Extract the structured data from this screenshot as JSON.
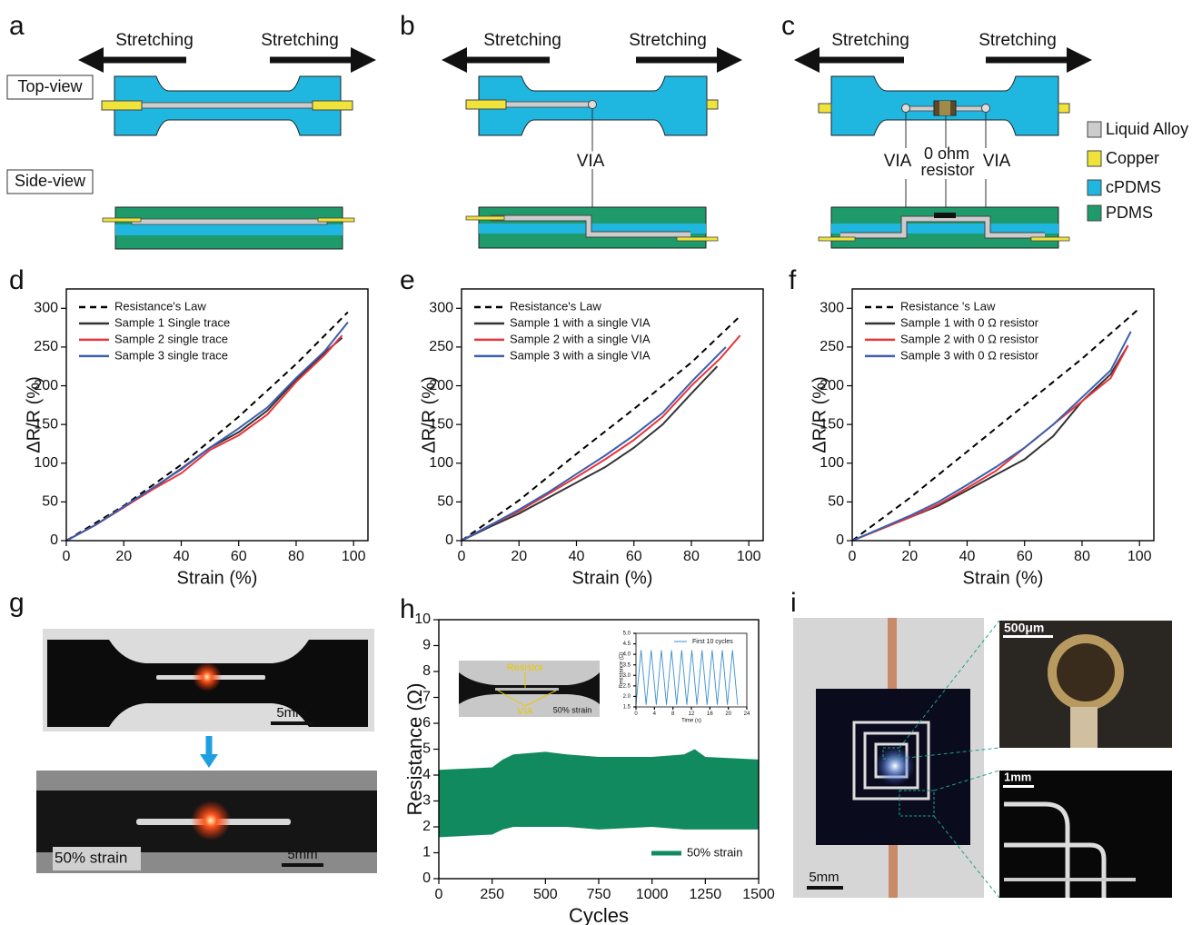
{
  "panels": {
    "a": {
      "label": "a",
      "stretch_left": "Stretching",
      "stretch_right": "Stretching",
      "top_view": "Top-view",
      "side_view": "Side-view"
    },
    "b": {
      "label": "b",
      "stretch_left": "Stretching",
      "stretch_right": "Stretching",
      "via": "VIA"
    },
    "c": {
      "label": "c",
      "stretch_left": "Stretching",
      "stretch_right": "Stretching",
      "via_left": "VIA",
      "resistor_lines": [
        "0 ohm",
        "resistor"
      ],
      "via_right": "VIA"
    },
    "legend": [
      "Liquid Alloy",
      "Copper",
      "cPDMS",
      "PDMS"
    ],
    "g": {
      "label": "g",
      "scale_top": "5mm",
      "scale_bottom": "5mm",
      "strain": "50% strain"
    },
    "h_photo": {
      "resistor": "Resistor",
      "via": "VIA",
      "strain": "50% strain"
    },
    "i": {
      "label": "i",
      "scale_main": "5mm",
      "scale_top": "500μm",
      "scale_bottom": "1mm"
    }
  },
  "chart_data": [
    {
      "type": "line",
      "label": "d",
      "xlabel": "Strain (%)",
      "ylabel": "ΔR/R (%)",
      "xlim": [
        0,
        105
      ],
      "ylim": [
        0,
        325
      ],
      "xticks": [
        0,
        20,
        40,
        60,
        80,
        100
      ],
      "yticks": [
        0,
        50,
        100,
        150,
        200,
        250,
        300
      ],
      "legend": "upper left",
      "series": [
        {
          "name": "Resistance's Law",
          "color": "#000000",
          "style": "dashed",
          "x": [
            0,
            20,
            40,
            60,
            80,
            98
          ],
          "values": [
            0,
            45,
            98,
            160,
            228,
            295
          ]
        },
        {
          "name": "Sample 1 Single trace",
          "color": "#333333",
          "style": "solid",
          "x": [
            0,
            10,
            20,
            30,
            40,
            50,
            60,
            70,
            80,
            90,
            96
          ],
          "values": [
            0,
            20,
            43,
            67,
            93,
            120,
            140,
            168,
            208,
            243,
            262
          ]
        },
        {
          "name": "Sample 2 single trace",
          "color": "#e8343a",
          "style": "solid",
          "x": [
            0,
            10,
            20,
            30,
            40,
            50,
            60,
            70,
            80,
            90,
            96
          ],
          "values": [
            0,
            20,
            43,
            66,
            87,
            117,
            136,
            163,
            205,
            240,
            265
          ]
        },
        {
          "name": "Sample 3 single trace",
          "color": "#3a5fae",
          "style": "solid",
          "x": [
            0,
            10,
            20,
            30,
            40,
            50,
            60,
            70,
            80,
            90,
            98
          ],
          "values": [
            0,
            20,
            44,
            68,
            92,
            120,
            145,
            172,
            210,
            245,
            282
          ]
        }
      ]
    },
    {
      "type": "line",
      "label": "e",
      "xlabel": "Strain (%)",
      "ylabel": "ΔR/R (%)",
      "xlim": [
        0,
        105
      ],
      "ylim": [
        0,
        325
      ],
      "xticks": [
        0,
        20,
        40,
        60,
        80,
        100
      ],
      "yticks": [
        0,
        50,
        100,
        150,
        200,
        250,
        300
      ],
      "legend": "upper left",
      "series": [
        {
          "name": "Resistance's Law",
          "color": "#000000",
          "style": "dashed",
          "x": [
            0,
            20,
            40,
            60,
            80,
            97
          ],
          "values": [
            0,
            52,
            112,
            170,
            230,
            290
          ]
        },
        {
          "name": "Sample 1 with a single VIA",
          "color": "#333333",
          "style": "solid",
          "x": [
            0,
            10,
            20,
            30,
            40,
            50,
            60,
            70,
            80,
            89
          ],
          "values": [
            0,
            18,
            35,
            55,
            75,
            95,
            120,
            150,
            190,
            225
          ]
        },
        {
          "name": "Sample 2 with a single VIA",
          "color": "#e8343a",
          "style": "solid",
          "x": [
            0,
            10,
            20,
            30,
            40,
            50,
            60,
            70,
            80,
            90,
            97
          ],
          "values": [
            0,
            20,
            38,
            60,
            82,
            105,
            130,
            160,
            200,
            235,
            265
          ]
        },
        {
          "name": "Sample 3 with a single VIA",
          "color": "#3a5fae",
          "style": "solid",
          "x": [
            0,
            10,
            20,
            30,
            40,
            50,
            60,
            70,
            80,
            92
          ],
          "values": [
            0,
            20,
            40,
            62,
            86,
            110,
            136,
            165,
            205,
            250
          ]
        }
      ]
    },
    {
      "type": "line",
      "label": "f",
      "xlabel": "Strain (%)",
      "ylabel": "ΔR/R (%)",
      "xlim": [
        0,
        105
      ],
      "ylim": [
        0,
        325
      ],
      "xticks": [
        0,
        20,
        40,
        60,
        80,
        100
      ],
      "yticks": [
        0,
        50,
        100,
        150,
        200,
        250,
        300
      ],
      "legend": "upper left",
      "series": [
        {
          "name": "Resistance 's Law",
          "color": "#000000",
          "style": "dashed",
          "x": [
            0,
            20,
            40,
            60,
            80,
            100
          ],
          "values": [
            0,
            55,
            115,
            175,
            235,
            300
          ]
        },
        {
          "name": "Sample 1 with 0 Ω resistor",
          "color": "#333333",
          "style": "solid",
          "x": [
            0,
            10,
            20,
            30,
            40,
            50,
            60,
            70,
            80,
            90,
            96
          ],
          "values": [
            0,
            15,
            30,
            45,
            65,
            85,
            105,
            135,
            180,
            215,
            252
          ]
        },
        {
          "name": "Sample 2 with 0 Ω resistor",
          "color": "#e8343a",
          "style": "solid",
          "x": [
            0,
            10,
            20,
            30,
            40,
            50,
            60,
            70,
            80,
            90,
            96
          ],
          "values": [
            0,
            15,
            30,
            47,
            68,
            90,
            120,
            150,
            180,
            210,
            252
          ]
        },
        {
          "name": "Sample 3 with 0 Ω resistor",
          "color": "#3a5fae",
          "style": "solid",
          "x": [
            0,
            10,
            20,
            30,
            40,
            50,
            60,
            70,
            80,
            90,
            97
          ],
          "values": [
            0,
            16,
            32,
            50,
            72,
            95,
            120,
            150,
            185,
            220,
            270
          ]
        }
      ]
    },
    {
      "type": "area",
      "label": "h",
      "xlabel": "Cycles",
      "ylabel": "Resistance (Ω)",
      "xlim": [
        0,
        1500
      ],
      "ylim": [
        0,
        10
      ],
      "xticks": [
        0,
        250,
        500,
        750,
        1000,
        1250,
        1500
      ],
      "yticks": [
        0,
        1,
        2,
        3,
        4,
        5,
        6,
        7,
        8,
        9,
        10
      ],
      "legend": "lower right",
      "series": [
        {
          "name": "50% strain",
          "color": "#118a5f",
          "x": [
            0,
            250,
            300,
            350,
            500,
            600,
            750,
            1000,
            1150,
            1200,
            1250,
            1500
          ],
          "values": [
            4.2,
            4.3,
            4.6,
            4.8,
            4.9,
            4.8,
            4.7,
            4.7,
            4.8,
            5.0,
            4.7,
            4.6
          ],
          "lower": [
            1.6,
            1.7,
            1.9,
            2.0,
            2.0,
            2.0,
            1.9,
            2.0,
            1.9,
            1.9,
            1.9,
            1.9
          ]
        }
      ]
    },
    {
      "type": "line",
      "xlabel": "Time (s)",
      "ylabel": "Resistance (Ω)",
      "xlim": [
        0,
        24
      ],
      "ylim": [
        1.5,
        5.0
      ],
      "xticks": [
        0,
        4,
        8,
        12,
        16,
        20,
        24
      ],
      "yticks": [
        {
          "value": 1.5,
          "label": "1.5"
        },
        {
          "value": 2.0,
          "label": "2.0"
        },
        {
          "value": 2.5,
          "label": "2.5"
        },
        {
          "value": 3.0,
          "label": "3.0"
        },
        {
          "value": 3.5,
          "label": "3.5"
        },
        {
          "value": 4.0,
          "label": "4.0"
        },
        {
          "value": 4.5,
          "label": "4.5"
        },
        {
          "value": 5.0,
          "label": "5.0"
        }
      ],
      "legend": "upper right",
      "series": [
        {
          "name": "First 10 cycles",
          "color": "#3a8fd0",
          "style": "solid",
          "x": [
            0,
            0.55,
            1.1,
            1.65,
            2.2,
            2.75,
            3.3,
            3.85,
            4.4,
            4.95,
            5.5,
            6.05,
            6.6,
            7.15,
            7.7,
            8.25,
            8.8,
            9.35,
            9.9,
            10.45,
            11,
            11.55,
            12.1,
            12.65,
            13.2,
            13.75,
            14.3,
            14.85,
            15.4,
            15.95,
            16.5,
            17.05,
            17.6,
            18.15,
            18.7,
            19.25,
            19.8,
            20.35,
            20.9,
            21.45,
            22
          ],
          "values": [
            1.6,
            2.9,
            4.2,
            2.9,
            1.6,
            2.9,
            4.2,
            2.9,
            1.6,
            2.9,
            4.2,
            2.9,
            1.6,
            2.9,
            4.2,
            2.9,
            1.6,
            2.9,
            4.2,
            2.9,
            1.6,
            2.9,
            4.2,
            2.9,
            1.6,
            2.9,
            4.2,
            2.9,
            1.6,
            2.9,
            4.2,
            2.9,
            1.6,
            2.9,
            4.2,
            2.9,
            1.6,
            2.9,
            4.2,
            2.9,
            1.6
          ]
        }
      ]
    }
  ]
}
